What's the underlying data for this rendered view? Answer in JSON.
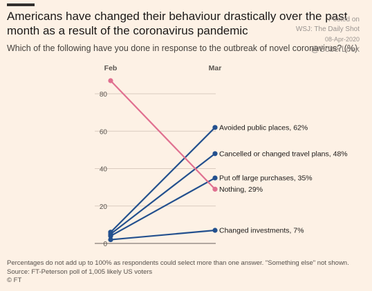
{
  "header": {
    "title": "Americans have changed their behaviour drastically over the past month as a result of the coronavirus pandemic",
    "subtitle": "Which of the following have you done in response to the outbreak of novel coronavirus? (%)"
  },
  "watermark": {
    "line1": "Posted on",
    "line2": "WSJ: The Daily Shot",
    "line3": "08-Apr-2020",
    "line4": "@SoberLook"
  },
  "footer": {
    "note": "Percentages do not add up to 100% as respondents could select more than one answer. \"Something else\" not shown.",
    "source": "Source: FT-Peterson poll of 1,005 likely US voters",
    "credit": "© FT"
  },
  "colors": {
    "background": "#fdf1e5",
    "blue": "#23508e",
    "pink": "#e07090",
    "grid": "#d9cbbf"
  },
  "chart_data": {
    "type": "line",
    "x": [
      "Feb",
      "Mar"
    ],
    "ylim": [
      0,
      90
    ],
    "yticks": [
      0,
      20,
      40,
      60,
      80
    ],
    "grid": true,
    "series": [
      {
        "name": "Avoided public places",
        "values": [
          6,
          62
        ],
        "label": "Avoided public places, 62%",
        "color": "#23508e"
      },
      {
        "name": "Cancelled or changed travel plans",
        "values": [
          5,
          48
        ],
        "label": "Cancelled or changed travel plans, 48%",
        "color": "#23508e"
      },
      {
        "name": "Put off large purchases",
        "values": [
          4,
          35
        ],
        "label": "Put off large purchases, 35%",
        "color": "#23508e"
      },
      {
        "name": "Nothing",
        "values": [
          87,
          29
        ],
        "label": "Nothing, 29%",
        "color": "#e07090"
      },
      {
        "name": "Changed investments",
        "values": [
          2,
          7
        ],
        "label": "Changed investments, 7%",
        "color": "#23508e"
      }
    ]
  }
}
